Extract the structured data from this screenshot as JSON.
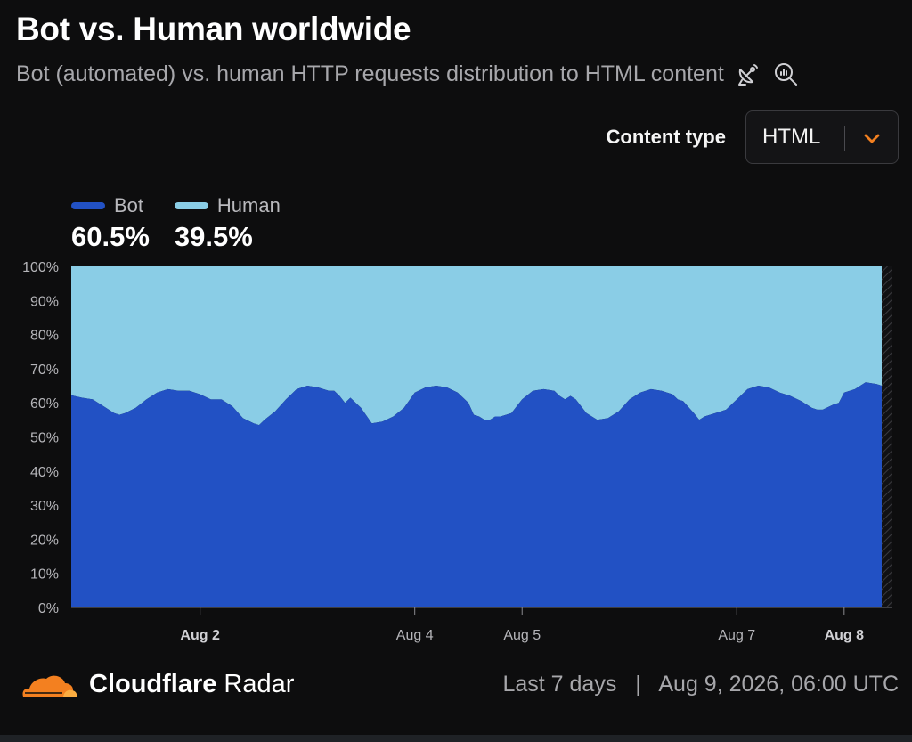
{
  "header": {
    "title": "Bot vs. Human worldwide",
    "subtitle": "Bot (automated) vs. human HTTP requests distribution to HTML content",
    "icons": [
      "satellite-dish-icon",
      "zoom-chart-icon"
    ]
  },
  "filter": {
    "label": "Content type",
    "value": "HTML"
  },
  "legend": {
    "items": [
      {
        "name": "Bot",
        "value": "60.5%",
        "color": "#2251c4"
      },
      {
        "name": "Human",
        "value": "39.5%",
        "color": "#8acde6"
      }
    ]
  },
  "chart_data": {
    "type": "area",
    "stacked": true,
    "ylim": [
      0,
      100
    ],
    "y_ticks": [
      "0%",
      "10%",
      "20%",
      "30%",
      "40%",
      "50%",
      "60%",
      "70%",
      "80%",
      "90%",
      "100%"
    ],
    "x_ticks": [
      {
        "day": 1,
        "label": "Aug 2",
        "bold": true
      },
      {
        "day": 3,
        "label": "Aug 4",
        "bold": false
      },
      {
        "day": 4,
        "label": "Aug 5",
        "bold": false
      },
      {
        "day": 6,
        "label": "Aug 7",
        "bold": false
      },
      {
        "day": 7,
        "label": "Aug 8",
        "bold": true
      }
    ],
    "grid": false,
    "series": [
      {
        "name": "Bot",
        "color": "#2251c4",
        "points": [
          [
            0.0,
            62.2
          ],
          [
            0.1,
            61.5
          ],
          [
            0.2,
            61.0
          ],
          [
            0.3,
            59.0
          ],
          [
            0.4,
            57.0
          ],
          [
            0.45,
            56.5
          ],
          [
            0.5,
            57.0
          ],
          [
            0.6,
            58.5
          ],
          [
            0.7,
            61.0
          ],
          [
            0.8,
            63.0
          ],
          [
            0.9,
            64.0
          ],
          [
            1.0,
            63.5
          ],
          [
            1.1,
            63.5
          ],
          [
            1.2,
            62.5
          ],
          [
            1.3,
            61.0
          ],
          [
            1.4,
            61.0
          ],
          [
            1.5,
            59.0
          ],
          [
            1.6,
            55.5
          ],
          [
            1.7,
            54.0
          ],
          [
            1.75,
            53.5
          ],
          [
            1.8,
            55.0
          ],
          [
            1.9,
            57.5
          ],
          [
            2.0,
            61.0
          ],
          [
            2.1,
            64.0
          ],
          [
            2.2,
            65.0
          ],
          [
            2.3,
            64.5
          ],
          [
            2.4,
            63.5
          ],
          [
            2.45,
            63.5
          ],
          [
            2.5,
            62.0
          ],
          [
            2.55,
            60.0
          ],
          [
            2.6,
            61.5
          ],
          [
            2.7,
            58.5
          ],
          [
            2.8,
            54.0
          ],
          [
            2.9,
            54.5
          ],
          [
            3.0,
            56.0
          ],
          [
            3.1,
            58.5
          ],
          [
            3.2,
            63.0
          ],
          [
            3.3,
            64.5
          ],
          [
            3.4,
            65.0
          ],
          [
            3.5,
            64.5
          ],
          [
            3.6,
            63.0
          ],
          [
            3.7,
            60.0
          ],
          [
            3.75,
            56.5
          ],
          [
            3.8,
            56.0
          ],
          [
            3.85,
            55.0
          ],
          [
            3.9,
            55.0
          ],
          [
            3.95,
            56.0
          ],
          [
            4.0,
            56.0
          ],
          [
            4.1,
            57.0
          ],
          [
            4.2,
            61.0
          ],
          [
            4.3,
            63.5
          ],
          [
            4.4,
            64.0
          ],
          [
            4.5,
            63.5
          ],
          [
            4.55,
            62.0
          ],
          [
            4.6,
            61.0
          ],
          [
            4.65,
            62.0
          ],
          [
            4.7,
            61.0
          ],
          [
            4.8,
            57.0
          ],
          [
            4.9,
            55.0
          ],
          [
            5.0,
            55.5
          ],
          [
            5.1,
            57.5
          ],
          [
            5.2,
            61.0
          ],
          [
            5.3,
            63.0
          ],
          [
            5.4,
            64.0
          ],
          [
            5.5,
            63.5
          ],
          [
            5.6,
            62.5
          ],
          [
            5.65,
            61.0
          ],
          [
            5.7,
            60.5
          ],
          [
            5.8,
            57.0
          ],
          [
            5.85,
            55.0
          ],
          [
            5.9,
            56.0
          ],
          [
            6.0,
            57.0
          ],
          [
            6.1,
            58.0
          ],
          [
            6.2,
            61.0
          ],
          [
            6.3,
            64.0
          ],
          [
            6.4,
            65.0
          ],
          [
            6.5,
            64.5
          ],
          [
            6.6,
            63.0
          ],
          [
            6.7,
            62.0
          ],
          [
            6.8,
            60.5
          ],
          [
            6.9,
            58.5
          ],
          [
            6.95,
            58.0
          ],
          [
            7.0,
            58.0
          ],
          [
            7.1,
            59.5
          ],
          [
            7.15,
            60.0
          ],
          [
            7.2,
            63.0
          ],
          [
            7.3,
            64.0
          ],
          [
            7.4,
            66.0
          ],
          [
            7.5,
            65.5
          ],
          [
            7.55,
            65.0
          ]
        ]
      },
      {
        "name": "Human",
        "color": "#8acde6",
        "points": [
          [
            0.0,
            37.8
          ],
          [
            0.1,
            38.5
          ],
          [
            0.2,
            39.0
          ],
          [
            0.3,
            41.0
          ],
          [
            0.4,
            43.0
          ],
          [
            0.45,
            43.5
          ],
          [
            0.5,
            43.0
          ],
          [
            0.6,
            41.5
          ],
          [
            0.7,
            39.0
          ],
          [
            0.8,
            37.0
          ],
          [
            0.9,
            36.0
          ],
          [
            1.0,
            36.5
          ],
          [
            1.1,
            36.5
          ],
          [
            1.2,
            37.5
          ],
          [
            1.3,
            39.0
          ],
          [
            1.4,
            39.0
          ],
          [
            1.5,
            41.0
          ],
          [
            1.6,
            44.5
          ],
          [
            1.7,
            46.0
          ],
          [
            1.75,
            46.5
          ],
          [
            1.8,
            45.0
          ],
          [
            1.9,
            42.5
          ],
          [
            2.0,
            39.0
          ],
          [
            2.1,
            36.0
          ],
          [
            2.2,
            35.0
          ],
          [
            2.3,
            35.5
          ],
          [
            2.4,
            36.5
          ],
          [
            2.45,
            36.5
          ],
          [
            2.5,
            38.0
          ],
          [
            2.55,
            40.0
          ],
          [
            2.6,
            38.5
          ],
          [
            2.7,
            41.5
          ],
          [
            2.8,
            46.0
          ],
          [
            2.9,
            45.5
          ],
          [
            3.0,
            44.0
          ],
          [
            3.1,
            41.5
          ],
          [
            3.2,
            37.0
          ],
          [
            3.3,
            35.5
          ],
          [
            3.4,
            35.0
          ],
          [
            3.5,
            35.5
          ],
          [
            3.6,
            37.0
          ],
          [
            3.7,
            40.0
          ],
          [
            3.75,
            43.5
          ],
          [
            3.8,
            44.0
          ],
          [
            3.85,
            45.0
          ],
          [
            3.9,
            45.0
          ],
          [
            3.95,
            44.0
          ],
          [
            4.0,
            44.0
          ],
          [
            4.1,
            43.0
          ],
          [
            4.2,
            39.0
          ],
          [
            4.3,
            36.5
          ],
          [
            4.4,
            36.0
          ],
          [
            4.5,
            36.5
          ],
          [
            4.55,
            38.0
          ],
          [
            4.6,
            39.0
          ],
          [
            4.65,
            38.0
          ],
          [
            4.7,
            39.0
          ],
          [
            4.8,
            43.0
          ],
          [
            4.9,
            45.0
          ],
          [
            5.0,
            44.5
          ],
          [
            5.1,
            42.5
          ],
          [
            5.2,
            39.0
          ],
          [
            5.3,
            37.0
          ],
          [
            5.4,
            36.0
          ],
          [
            5.5,
            36.5
          ],
          [
            5.6,
            37.5
          ],
          [
            5.65,
            39.0
          ],
          [
            5.7,
            39.5
          ],
          [
            5.8,
            43.0
          ],
          [
            5.85,
            45.0
          ],
          [
            5.9,
            44.0
          ],
          [
            6.0,
            43.0
          ],
          [
            6.1,
            42.0
          ],
          [
            6.2,
            39.0
          ],
          [
            6.3,
            36.0
          ],
          [
            6.4,
            35.0
          ],
          [
            6.5,
            35.5
          ],
          [
            6.6,
            37.0
          ],
          [
            6.7,
            38.0
          ],
          [
            6.8,
            39.5
          ],
          [
            6.9,
            41.5
          ],
          [
            6.95,
            42.0
          ],
          [
            7.0,
            42.0
          ],
          [
            7.1,
            40.5
          ],
          [
            7.15,
            40.0
          ],
          [
            7.2,
            37.0
          ],
          [
            7.3,
            36.0
          ],
          [
            7.4,
            34.0
          ],
          [
            7.5,
            34.5
          ],
          [
            7.55,
            35.0
          ]
        ]
      }
    ]
  },
  "footer": {
    "brand_strong": "Cloudflare",
    "brand_light": "Radar",
    "range": "Last 7 days",
    "separator": "|",
    "timestamp": "Aug 9, 2026, 06:00 UTC",
    "logo_color": "#f38020"
  }
}
